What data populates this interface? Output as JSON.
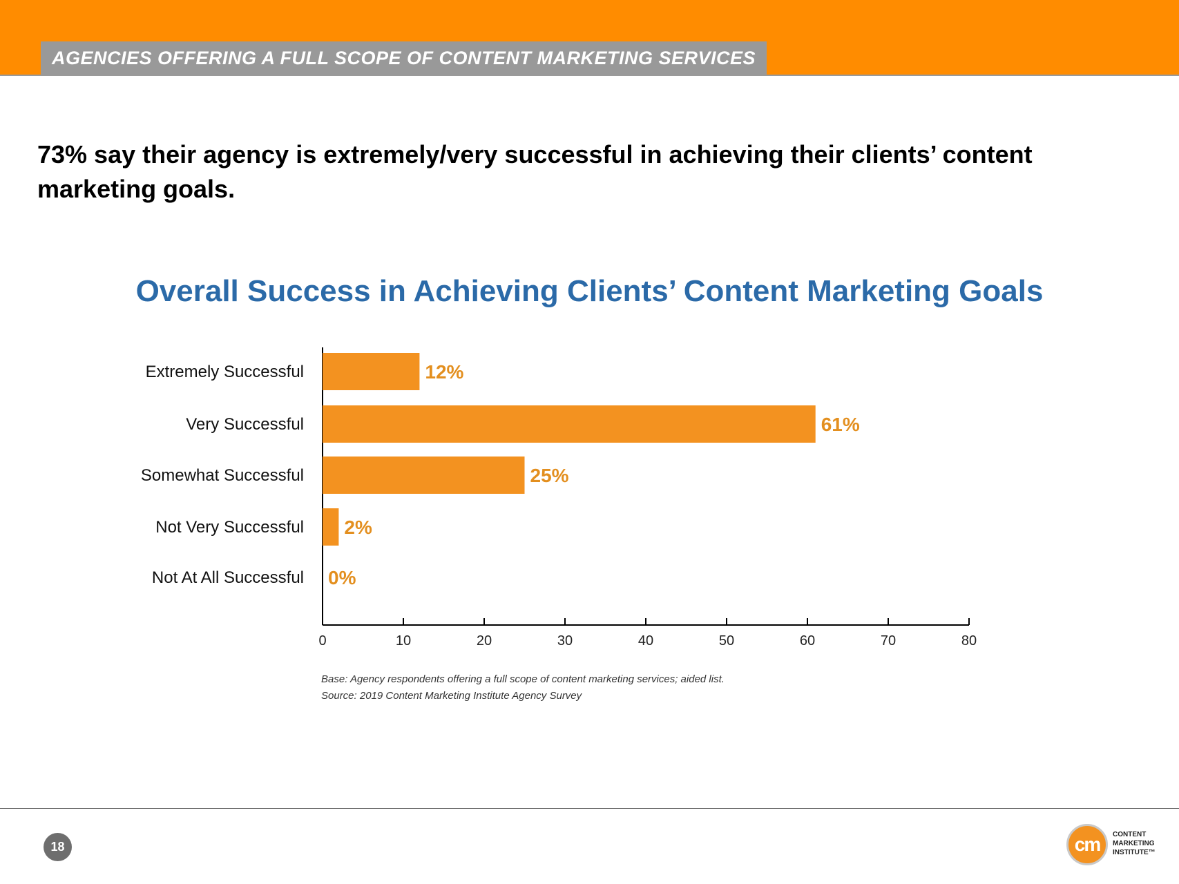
{
  "header": {
    "section_title": "AGENCIES OFFERING A FULL SCOPE OF CONTENT MARKETING SERVICES"
  },
  "headline": "73% say their agency is extremely/very successful in achieving their clients’ content marketing goals.",
  "chart_data": {
    "type": "bar",
    "orientation": "horizontal",
    "title": "Overall Success in Achieving Clients’ Content Marketing Goals",
    "categories": [
      "Extremely Successful",
      "Very Successful",
      "Somewhat Successful",
      "Not Very Successful",
      "Not At All Successful"
    ],
    "values": [
      12,
      61,
      25,
      2,
      0
    ],
    "value_labels": [
      "12%",
      "61%",
      "25%",
      "2%",
      "0%"
    ],
    "xlim": [
      0,
      80
    ],
    "x_ticks": [
      0,
      10,
      20,
      30,
      40,
      50,
      60,
      70,
      80
    ],
    "grid": false,
    "legend": "none",
    "bar_color": "#f39220",
    "label_color": "#e38f1f"
  },
  "notes": {
    "base": "Base: Agency respondents offering a full scope of content marketing services; aided list.",
    "source": "Source: 2019 Content Marketing Institute Agency Survey"
  },
  "footer": {
    "page_number": "18",
    "logo_mark": "cm",
    "logo_lines": [
      "CONTENT",
      "MARKETING",
      "INSTITUTE™"
    ]
  },
  "colors": {
    "header_bar": "#ff8c00",
    "section_tab": "#999999",
    "chart_title": "#2b6aa8"
  }
}
